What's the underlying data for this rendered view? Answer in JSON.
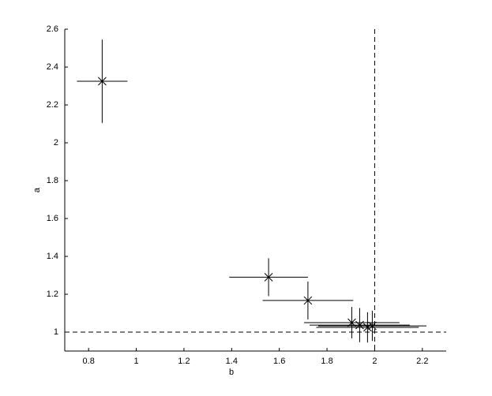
{
  "chart_data": {
    "type": "scatter",
    "x_label": "b",
    "y_label": "a",
    "series": [
      {
        "color": "#000000",
        "x": [
          0.857,
          1.555,
          1.72,
          1.904,
          1.937,
          1.97,
          1.99
        ],
        "values": [
          2.325,
          1.29,
          1.167,
          1.05,
          1.037,
          1.025,
          1.033
        ],
        "xerr": [
          0.106,
          0.165,
          0.19,
          0.2,
          0.21,
          0.215,
          0.227
        ],
        "yerr": [
          0.22,
          0.1,
          0.1,
          0.083,
          0.09,
          0.08,
          0.08
        ]
      }
    ],
    "hlines": [
      1
    ],
    "vlines": [
      2
    ],
    "xlim": [
      0.7,
      2.3
    ],
    "xticks": [
      0.8,
      1,
      1.2,
      1.4,
      1.6,
      1.8,
      2,
      2.2
    ],
    "ylim": [
      0.9,
      2.6
    ],
    "yticks": [
      1,
      1.2,
      1.4,
      1.6,
      1.8,
      2,
      2.2,
      2.4,
      2.6
    ],
    "grid": false
  }
}
